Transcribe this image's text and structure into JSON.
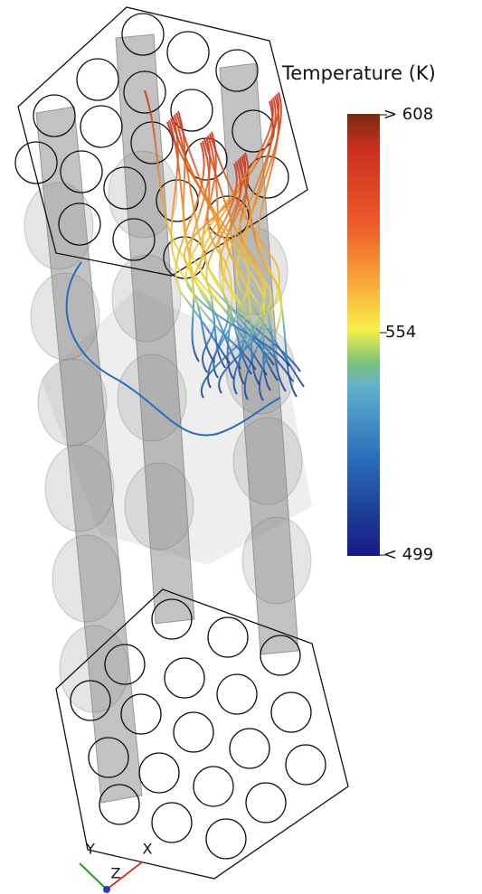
{
  "colorbar": {
    "title": "Temperature (K)",
    "labels": [
      "> 608",
      "554",
      "< 499"
    ]
  },
  "triad": {
    "labels": [
      "Y",
      "X",
      "Z"
    ]
  }
}
